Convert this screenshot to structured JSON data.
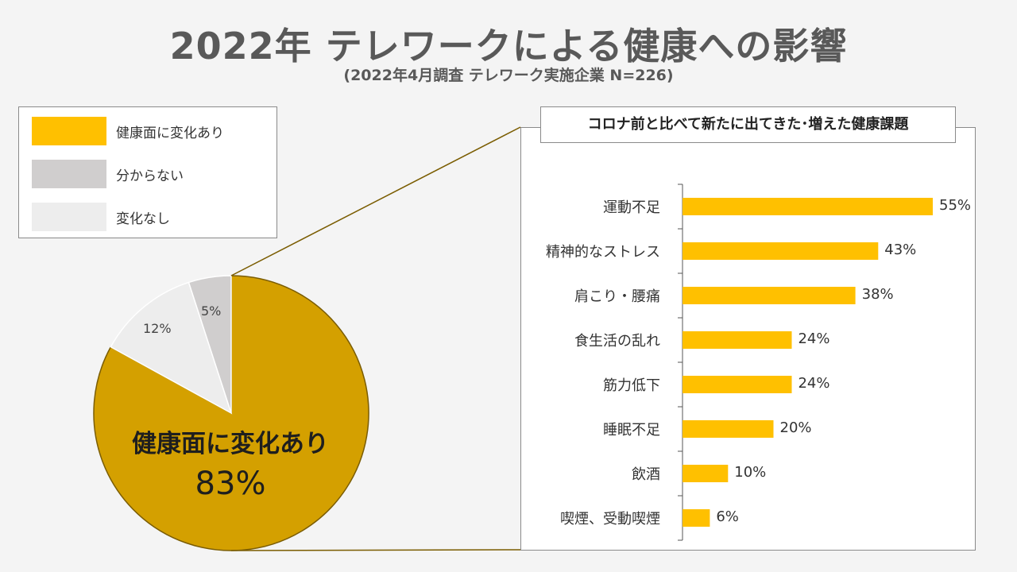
{
  "header": {
    "title": "2022年 テレワークによる健康への影響",
    "subtitle": "(2022年4月調査 テレワーク実施企業 N=226)"
  },
  "legend": {
    "items": [
      {
        "label": "健康面に変化あり",
        "color": "#ffc000"
      },
      {
        "label": "分からない",
        "color": "#d0cece"
      },
      {
        "label": "変化なし",
        "color": "#ededed"
      }
    ]
  },
  "chart_data": [
    {
      "type": "pie",
      "slices": [
        {
          "label": "健康面に変化あり",
          "value": 83,
          "display": "83%",
          "color": "#d4a000"
        },
        {
          "label": "変化なし",
          "value": 12,
          "display": "12%",
          "color": "#ededed"
        },
        {
          "label": "分からない",
          "value": 5,
          "display": "5%",
          "color": "#d0cece"
        }
      ],
      "highlight_label": "健康面に変化あり",
      "highlight_value": "83%"
    },
    {
      "type": "bar",
      "orientation": "horizontal",
      "title": "コロナ前と比べて新たに出てきた･増えた健康課題",
      "categories": [
        "運動不足",
        "精神的なストレス",
        "肩こり・腰痛",
        "食生活の乱れ",
        "筋力低下",
        "睡眠不足",
        "飲酒",
        "喫煙、受動喫煙"
      ],
      "values": [
        55,
        43,
        38,
        24,
        24,
        20,
        10,
        6
      ],
      "labels": [
        "55%",
        "43%",
        "38%",
        "24%",
        "24%",
        "20%",
        "10%",
        "6%"
      ],
      "color": "#ffc000",
      "xlim": [
        0,
        55
      ]
    }
  ]
}
